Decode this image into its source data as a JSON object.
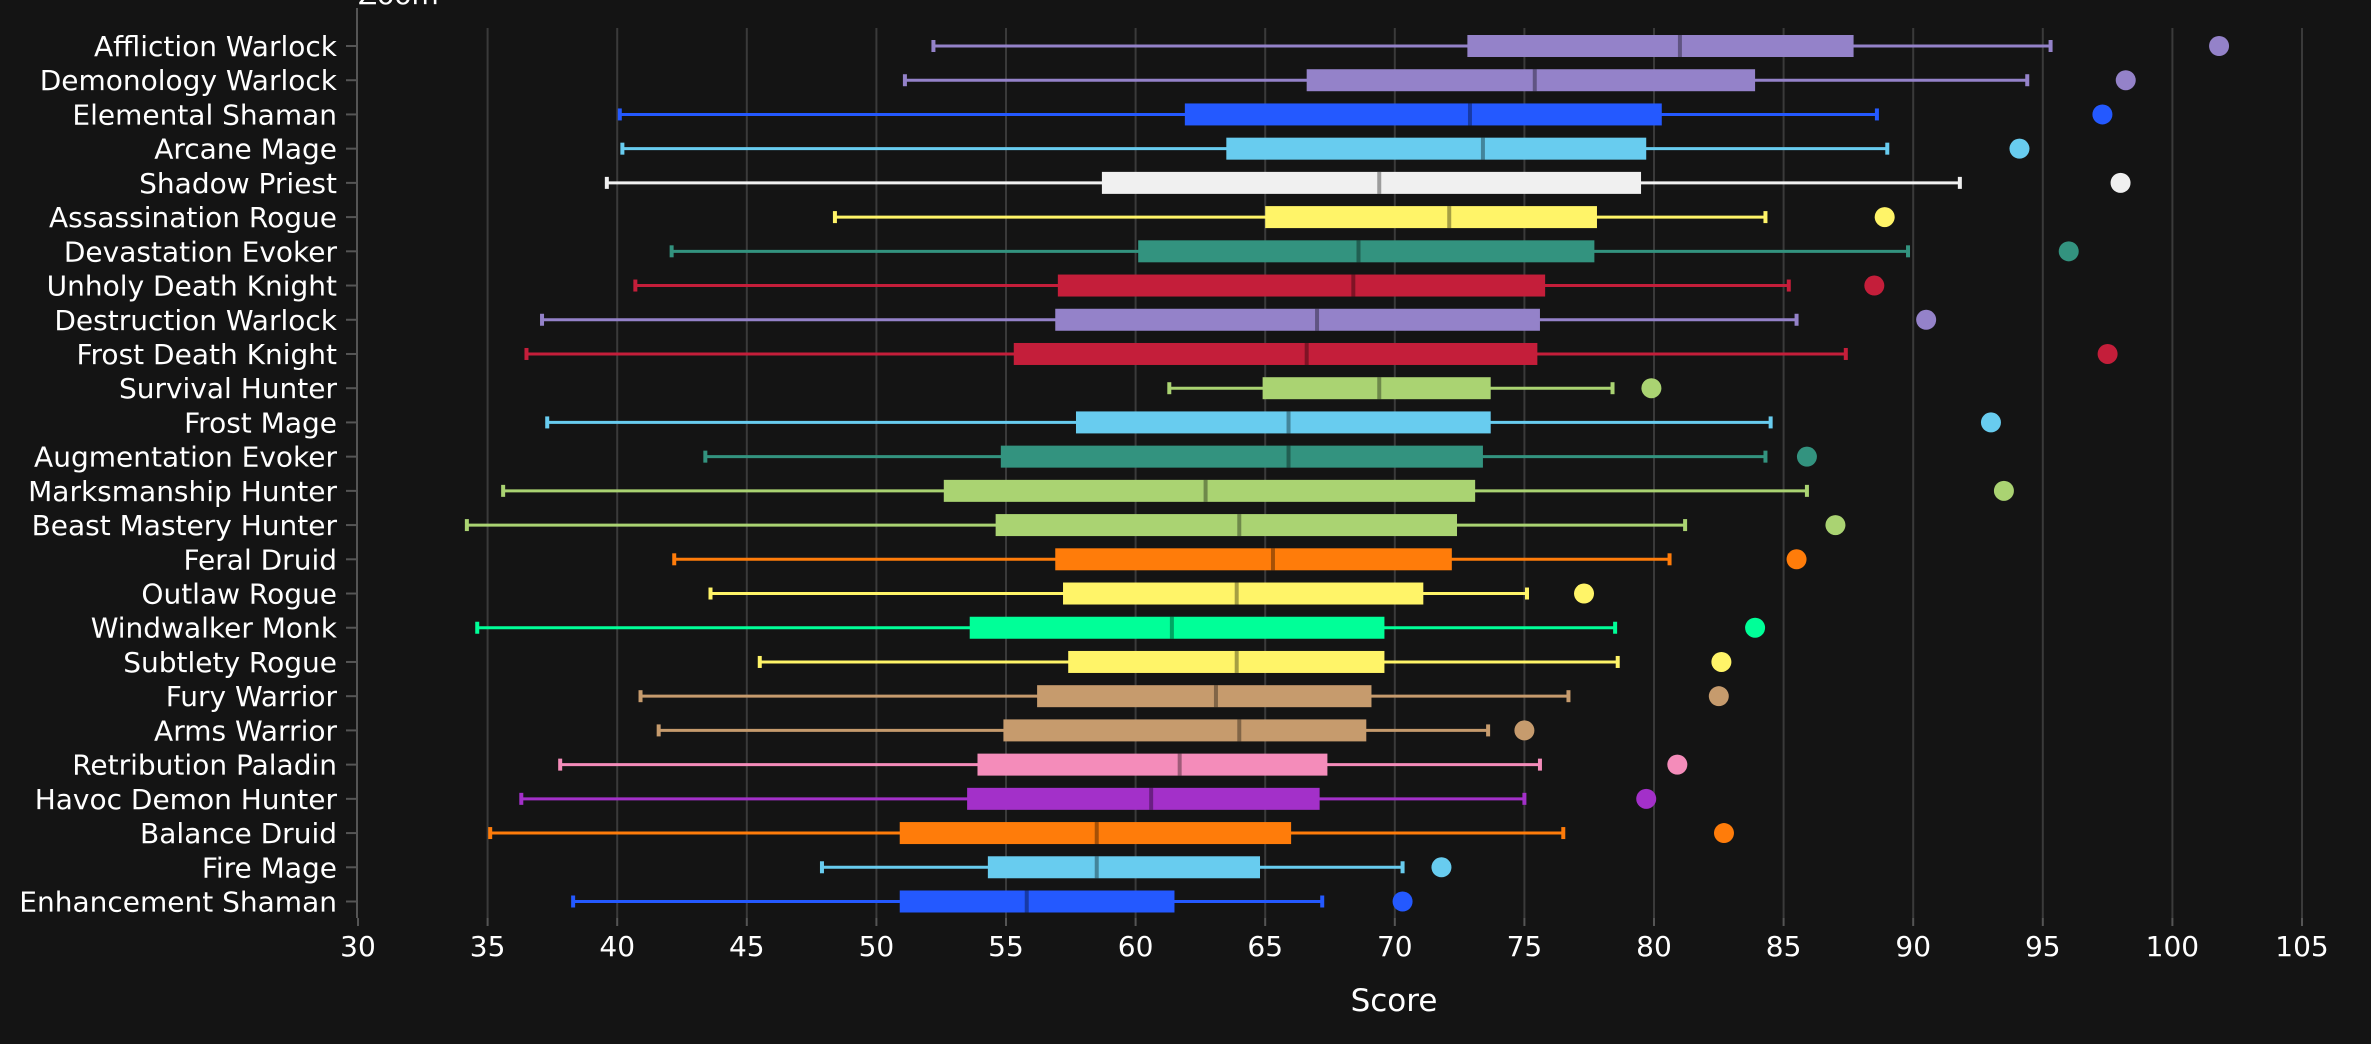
{
  "chart_data": {
    "type": "box",
    "title_fragment": "Zoom",
    "xlabel": "Score",
    "xlim": [
      30,
      105
    ],
    "xticks": [
      30,
      35,
      40,
      45,
      50,
      55,
      60,
      65,
      70,
      75,
      80,
      85,
      90,
      95,
      100,
      105
    ],
    "grid": "vertical",
    "background": "#141414",
    "series": [
      {
        "name": "Affliction Warlock",
        "color": "#9482c9",
        "min": 52.2,
        "q1": 72.8,
        "median": 81.0,
        "q3": 87.7,
        "max": 95.3,
        "outlier": 101.8
      },
      {
        "name": "Demonology Warlock",
        "color": "#9482c9",
        "min": 51.1,
        "q1": 66.6,
        "median": 75.4,
        "q3": 83.9,
        "max": 94.4,
        "outlier": 98.2
      },
      {
        "name": "Elemental Shaman",
        "color": "#2459ff",
        "min": 40.1,
        "q1": 61.9,
        "median": 72.9,
        "q3": 80.3,
        "max": 88.6,
        "outlier": 97.3
      },
      {
        "name": "Arcane Mage",
        "color": "#68ccef",
        "min": 40.2,
        "q1": 63.5,
        "median": 73.4,
        "q3": 79.7,
        "max": 89.0,
        "outlier": 94.1
      },
      {
        "name": "Shadow Priest",
        "color": "#f0f0f0",
        "min": 39.6,
        "q1": 58.7,
        "median": 69.4,
        "q3": 79.5,
        "max": 91.8,
        "outlier": 98.0
      },
      {
        "name": "Assassination Rogue",
        "color": "#fff468",
        "min": 48.4,
        "q1": 65.0,
        "median": 72.1,
        "q3": 77.8,
        "max": 84.3,
        "outlier": 88.9
      },
      {
        "name": "Devastation Evoker",
        "color": "#33937f",
        "min": 42.1,
        "q1": 60.1,
        "median": 68.6,
        "q3": 77.7,
        "max": 89.8,
        "outlier": 96.0
      },
      {
        "name": "Unholy Death Knight",
        "color": "#c41e3a",
        "min": 40.7,
        "q1": 57.0,
        "median": 68.4,
        "q3": 75.8,
        "max": 85.2,
        "outlier": 88.5
      },
      {
        "name": "Destruction Warlock",
        "color": "#9482c9",
        "min": 37.1,
        "q1": 56.9,
        "median": 67.0,
        "q3": 75.6,
        "max": 85.5,
        "outlier": 90.5
      },
      {
        "name": "Frost Death Knight",
        "color": "#c41e3a",
        "min": 36.5,
        "q1": 55.3,
        "median": 66.6,
        "q3": 75.5,
        "max": 87.4,
        "outlier": 97.5
      },
      {
        "name": "Survival Hunter",
        "color": "#aad372",
        "min": 61.3,
        "q1": 64.9,
        "median": 69.4,
        "q3": 73.7,
        "max": 78.4,
        "outlier": 79.9
      },
      {
        "name": "Frost Mage",
        "color": "#68ccef",
        "min": 37.3,
        "q1": 57.7,
        "median": 65.9,
        "q3": 73.7,
        "max": 84.5,
        "outlier": 93.0
      },
      {
        "name": "Augmentation Evoker",
        "color": "#33937f",
        "min": 43.4,
        "q1": 54.8,
        "median": 65.9,
        "q3": 73.4,
        "max": 84.3,
        "outlier": 85.9
      },
      {
        "name": "Marksmanship Hunter",
        "color": "#aad372",
        "min": 35.6,
        "q1": 52.6,
        "median": 62.7,
        "q3": 73.1,
        "max": 85.9,
        "outlier": 93.5
      },
      {
        "name": "Beast Mastery Hunter",
        "color": "#aad372",
        "min": 34.2,
        "q1": 54.6,
        "median": 64.0,
        "q3": 72.4,
        "max": 81.2,
        "outlier": 87.0
      },
      {
        "name": "Feral Druid",
        "color": "#ff7c0a",
        "min": 42.2,
        "q1": 56.9,
        "median": 65.3,
        "q3": 72.2,
        "max": 80.6,
        "outlier": 85.5
      },
      {
        "name": "Outlaw Rogue",
        "color": "#fff468",
        "min": 43.6,
        "q1": 57.2,
        "median": 63.9,
        "q3": 71.1,
        "max": 75.1,
        "outlier": 77.3
      },
      {
        "name": "Windwalker Monk",
        "color": "#00ff98",
        "min": 34.6,
        "q1": 53.6,
        "median": 61.4,
        "q3": 69.6,
        "max": 78.5,
        "outlier": 83.9
      },
      {
        "name": "Subtlety Rogue",
        "color": "#fff468",
        "min": 45.5,
        "q1": 57.4,
        "median": 63.9,
        "q3": 69.6,
        "max": 78.6,
        "outlier": 82.6
      },
      {
        "name": "Fury Warrior",
        "color": "#c69b6d",
        "min": 40.9,
        "q1": 56.2,
        "median": 63.1,
        "q3": 69.1,
        "max": 76.7,
        "outlier": 82.5
      },
      {
        "name": "Arms Warrior",
        "color": "#c69b6d",
        "min": 41.6,
        "q1": 54.9,
        "median": 64.0,
        "q3": 68.9,
        "max": 73.6,
        "outlier": 75.0
      },
      {
        "name": "Retribution Paladin",
        "color": "#f48cba",
        "min": 37.8,
        "q1": 53.9,
        "median": 61.7,
        "q3": 67.4,
        "max": 75.6,
        "outlier": 80.9
      },
      {
        "name": "Havoc Demon Hunter",
        "color": "#a330c9",
        "min": 36.3,
        "q1": 53.5,
        "median": 60.6,
        "q3": 67.1,
        "max": 75.0,
        "outlier": 79.7
      },
      {
        "name": "Balance Druid",
        "color": "#ff7c0a",
        "min": 35.1,
        "q1": 50.9,
        "median": 58.5,
        "q3": 66.0,
        "max": 76.5,
        "outlier": 82.7
      },
      {
        "name": "Fire Mage",
        "color": "#68ccef",
        "min": 47.9,
        "q1": 54.3,
        "median": 58.5,
        "q3": 64.8,
        "max": 70.3,
        "outlier": 71.8
      },
      {
        "name": "Enhancement Shaman",
        "color": "#2459ff",
        "min": 38.3,
        "q1": 50.9,
        "median": 55.8,
        "q3": 61.5,
        "max": 67.2,
        "outlier": 70.3
      }
    ]
  }
}
